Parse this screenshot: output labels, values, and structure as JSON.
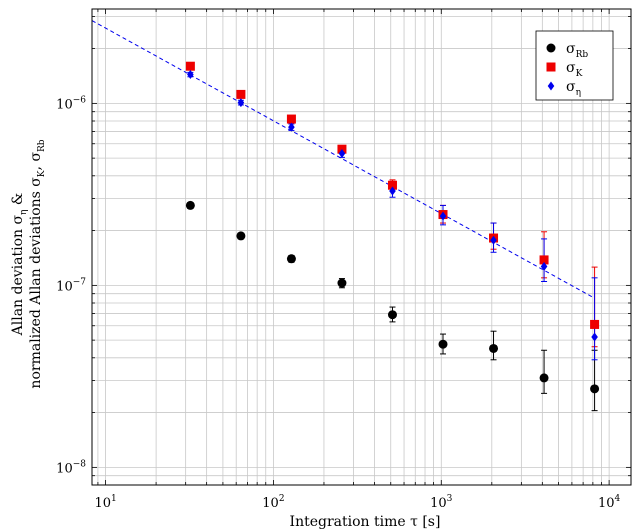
{
  "chart_data": {
    "type": "scatter",
    "title": "",
    "xlabel": "Integration time τ [s]",
    "ylabel_line1": "Allan deviation σ",
    "ylabel_line1_sub": "η",
    "ylabel_line1_tail": " &",
    "ylabel_line2": "normalized Allan deviations σ",
    "ylabel_line2_sub1": "K",
    "ylabel_line2_mid": ", σ",
    "ylabel_line2_sub2": "Rb",
    "x_scale": "log",
    "y_scale": "log",
    "xlim": [
      8.3,
      13500
    ],
    "ylim": [
      8e-09,
      3.3e-06
    ],
    "grid": true,
    "legend_position": "top-right",
    "x_ticks": [
      {
        "value": 10,
        "base": "10",
        "exp": "1"
      },
      {
        "value": 100,
        "base": "10",
        "exp": "2"
      },
      {
        "value": 1000,
        "base": "10",
        "exp": "3"
      },
      {
        "value": 10000,
        "base": "10",
        "exp": "4"
      }
    ],
    "y_ticks": [
      {
        "value": 1e-08,
        "base": "10",
        "exp": "−8"
      },
      {
        "value": 1e-07,
        "base": "10",
        "exp": "−7"
      },
      {
        "value": 1e-06,
        "base": "10",
        "exp": "−6"
      }
    ],
    "series": [
      {
        "name": "σ",
        "name_sub": "Rb",
        "marker": "circle",
        "color": "#000000",
        "points": [
          {
            "x": 32,
            "y": 2.75e-07,
            "ylo": 2.7e-07,
            "yhi": 2.8e-07
          },
          {
            "x": 64,
            "y": 1.87e-07,
            "ylo": 1.82e-07,
            "yhi": 1.92e-07
          },
          {
            "x": 128,
            "y": 1.4e-07,
            "ylo": 1.34e-07,
            "yhi": 1.46e-07
          },
          {
            "x": 256,
            "y": 1.03e-07,
            "ylo": 9.7e-08,
            "yhi": 1.09e-07
          },
          {
            "x": 512,
            "y": 6.9e-08,
            "ylo": 6.3e-08,
            "yhi": 7.6e-08
          },
          {
            "x": 1024,
            "y": 4.75e-08,
            "ylo": 4.2e-08,
            "yhi": 5.4e-08
          },
          {
            "x": 2048,
            "y": 4.5e-08,
            "ylo": 3.9e-08,
            "yhi": 5.6e-08
          },
          {
            "x": 4096,
            "y": 3.1e-08,
            "ylo": 2.55e-08,
            "yhi": 4.4e-08
          },
          {
            "x": 8192,
            "y": 2.7e-08,
            "ylo": 2.05e-08,
            "yhi": 4.4e-08
          }
        ]
      },
      {
        "name": "σ",
        "name_sub": "K",
        "marker": "square",
        "color": "#ee0000",
        "points": [
          {
            "x": 32,
            "y": 1.6e-06,
            "ylo": 1.57e-06,
            "yhi": 1.63e-06
          },
          {
            "x": 64,
            "y": 1.12e-06,
            "ylo": 1.09e-06,
            "yhi": 1.15e-06
          },
          {
            "x": 128,
            "y": 8.2e-07,
            "ylo": 7.9e-07,
            "yhi": 8.5e-07
          },
          {
            "x": 256,
            "y": 5.6e-07,
            "ylo": 5.35e-07,
            "yhi": 5.85e-07
          },
          {
            "x": 512,
            "y": 3.55e-07,
            "ylo": 3.3e-07,
            "yhi": 3.8e-07
          },
          {
            "x": 1024,
            "y": 2.45e-07,
            "ylo": 2.2e-07,
            "yhi": 2.75e-07
          },
          {
            "x": 2048,
            "y": 1.82e-07,
            "ylo": 1.58e-07,
            "yhi": 2.2e-07
          },
          {
            "x": 4096,
            "y": 1.38e-07,
            "ylo": 1.1e-07,
            "yhi": 1.97e-07
          },
          {
            "x": 8192,
            "y": 6.1e-08,
            "ylo": 4.6e-08,
            "yhi": 1.26e-07
          }
        ]
      },
      {
        "name": "σ",
        "name_sub": "η",
        "marker": "diamond",
        "color": "#0000ee",
        "points": [
          {
            "x": 32,
            "y": 1.44e-06,
            "ylo": 1.4e-06,
            "yhi": 1.48e-06
          },
          {
            "x": 64,
            "y": 1.01e-06,
            "ylo": 9.8e-07,
            "yhi": 1.04e-06
          },
          {
            "x": 128,
            "y": 7.4e-07,
            "ylo": 7.1e-07,
            "yhi": 7.7e-07
          },
          {
            "x": 256,
            "y": 5.3e-07,
            "ylo": 5.05e-07,
            "yhi": 5.55e-07
          },
          {
            "x": 512,
            "y": 3.3e-07,
            "ylo": 3.05e-07,
            "yhi": 3.55e-07
          },
          {
            "x": 1024,
            "y": 2.4e-07,
            "ylo": 2.15e-07,
            "yhi": 2.75e-07
          },
          {
            "x": 2048,
            "y": 1.77e-07,
            "ylo": 1.52e-07,
            "yhi": 2.2e-07
          },
          {
            "x": 4096,
            "y": 1.27e-07,
            "ylo": 1.05e-07,
            "yhi": 1.8e-07
          },
          {
            "x": 8192,
            "y": 5.2e-08,
            "ylo": 3.9e-08,
            "yhi": 1.1e-07
          }
        ]
      }
    ],
    "fit_line": {
      "style": "dashed",
      "color": "#0000ee",
      "points": [
        {
          "x": 8.3,
          "y": 2.85e-06
        },
        {
          "x": 8192,
          "y": 8.5e-08
        }
      ]
    }
  }
}
